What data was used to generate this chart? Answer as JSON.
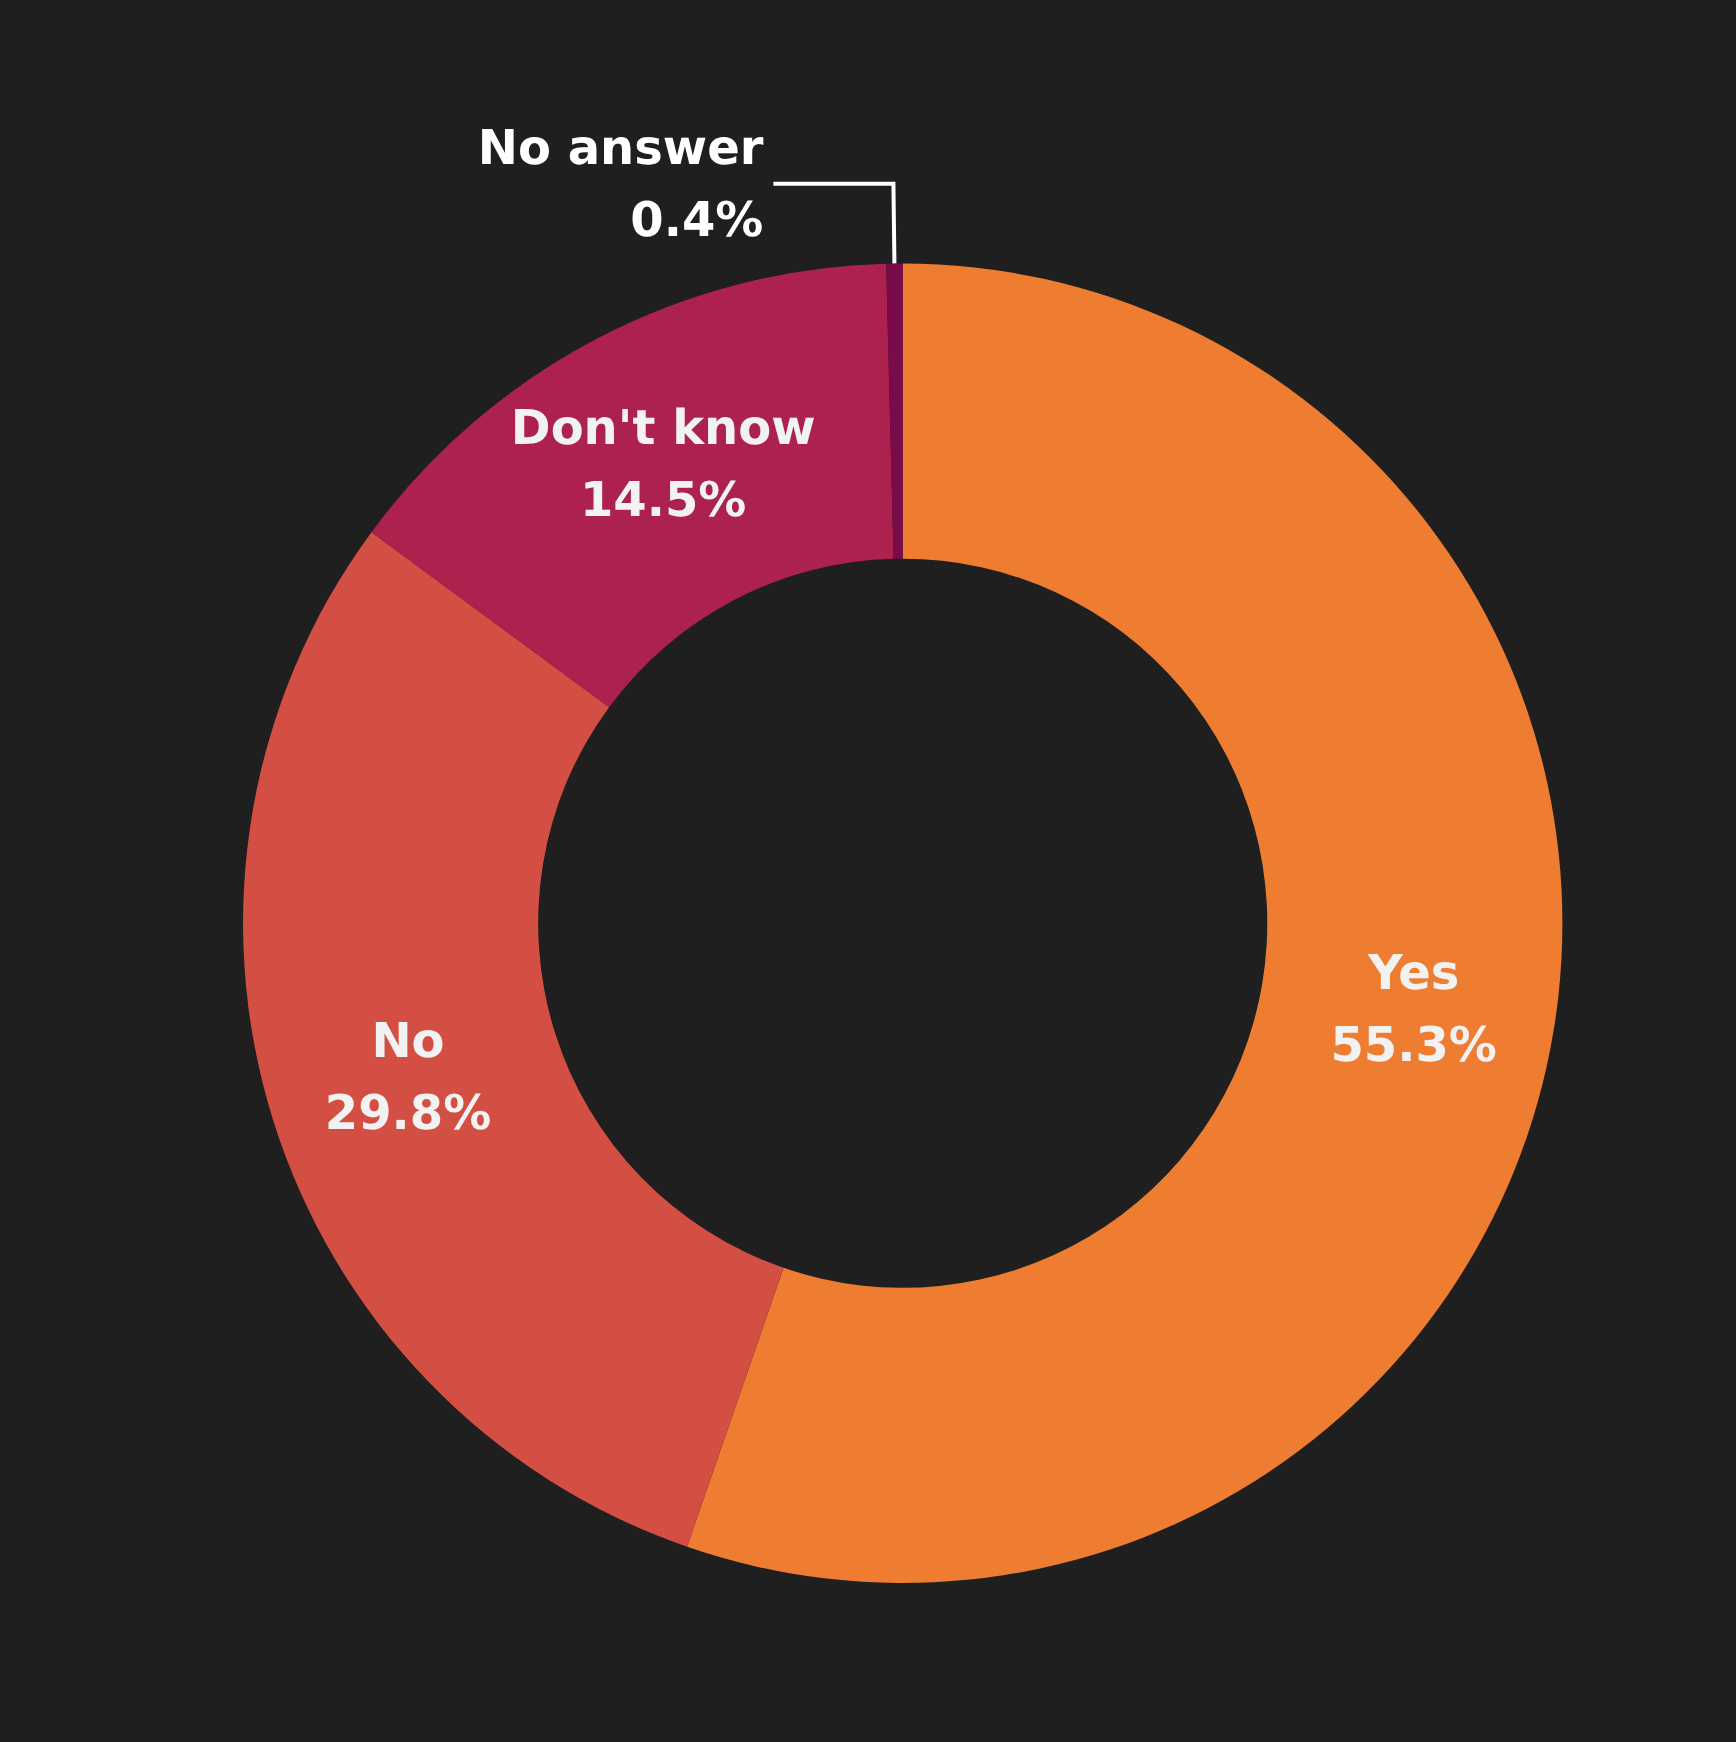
{
  "chart_data": {
    "type": "donut",
    "categories": [
      "Yes",
      "No",
      "Don't know",
      "No answer"
    ],
    "values": [
      55.3,
      29.8,
      14.5,
      0.4
    ],
    "value_labels": [
      "55.3%",
      "29.8%",
      "14.5%",
      "0.4%"
    ],
    "colors": [
      "#ee7d31",
      "#d44f43",
      "#ad214e",
      "#7b0a4a"
    ],
    "legend": false
  }
}
